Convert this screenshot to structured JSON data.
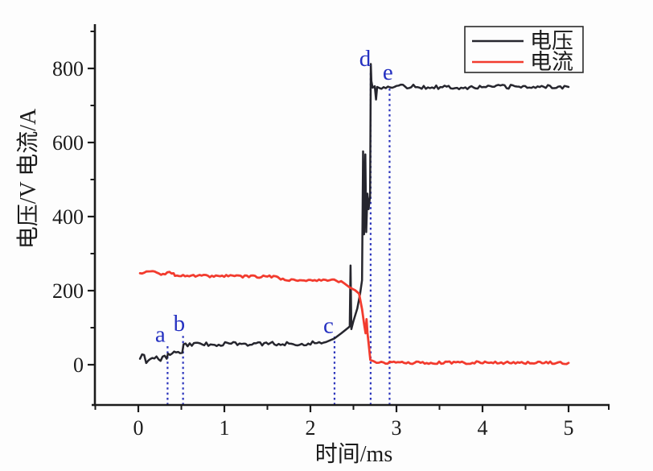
{
  "chart_data": {
    "type": "line",
    "title": "",
    "xlabel": "时间/ms",
    "ylabel": "电压/V 电流/A",
    "xlim": [
      -0.55,
      5.5
    ],
    "ylim": [
      -110,
      915
    ],
    "grid": false,
    "x_major_ticks": [
      0,
      1,
      2,
      3,
      4,
      5
    ],
    "x_tick_labels": [
      "0",
      "1",
      "2",
      "3",
      "4",
      "5"
    ],
    "x_minor_step": 0.5,
    "y_major_ticks": [
      0,
      200,
      400,
      600,
      800
    ],
    "y_tick_labels": [
      "0",
      "200",
      "400",
      "600",
      "800"
    ],
    "y_minor_ticks": [
      100,
      300,
      500,
      700,
      900
    ],
    "legend": {
      "position": "top-right",
      "entries": [
        {
          "label": "电压",
          "color": "#26262e"
        },
        {
          "label": "电流",
          "color": "#f23b2e"
        }
      ]
    },
    "annotation_color": "#2c35bd",
    "annotations": [
      {
        "label": "a",
        "t": 0.34,
        "line_top_v": 52,
        "label_t": 0.255,
        "label_v": 62
      },
      {
        "label": "b",
        "t": 0.52,
        "line_top_v": 80,
        "label_t": 0.475,
        "label_v": 91
      },
      {
        "label": "c",
        "t": 2.28,
        "line_top_v": 76,
        "label_t": 2.21,
        "label_v": 86
      },
      {
        "label": "d",
        "t": 2.7,
        "line_top_v": 790,
        "label_t": 2.635,
        "label_v": 806
      },
      {
        "label": "e",
        "t": 2.92,
        "line_top_v": 752,
        "label_t": 2.9,
        "label_v": 770
      }
    ],
    "series": [
      {
        "name": "电压",
        "unit": "V",
        "color": "#26262e",
        "width": 2.5,
        "noise": 5.5,
        "points": [
          [
            0.02,
            16,
            2.2
          ],
          [
            0.33,
            16
          ],
          [
            0.345,
            30,
            1.4
          ],
          [
            0.51,
            32
          ],
          [
            0.525,
            55,
            1
          ],
          [
            1.2,
            56
          ],
          [
            1.75,
            57
          ],
          [
            2.05,
            58
          ],
          [
            2.18,
            61
          ],
          [
            2.28,
            71
          ],
          [
            2.36,
            85
          ],
          [
            2.44,
            100
          ],
          [
            2.457,
            104
          ],
          [
            2.466,
            268
          ],
          [
            2.476,
            96
          ],
          [
            2.5,
            118
          ],
          [
            2.545,
            152
          ],
          [
            2.578,
            192
          ],
          [
            2.6,
            228
          ],
          [
            2.612,
            576
          ],
          [
            2.623,
            352
          ],
          [
            2.638,
            568
          ],
          [
            2.649,
            358
          ],
          [
            2.663,
            462
          ],
          [
            2.676,
            420
          ],
          [
            2.693,
            455
          ],
          [
            2.702,
            812
          ],
          [
            2.708,
            766
          ],
          [
            2.722,
            748
          ],
          [
            2.748,
            752
          ],
          [
            2.763,
            716
          ],
          [
            2.776,
            750
          ],
          [
            3.1,
            751
          ],
          [
            3.8,
            749
          ],
          [
            4.4,
            751
          ],
          [
            5.0,
            750
          ]
        ]
      },
      {
        "name": "电流",
        "unit": "A",
        "color": "#f23b2e",
        "width": 2.8,
        "noise": 3.5,
        "points": [
          [
            0.02,
            247,
            1.6
          ],
          [
            0.41,
            247
          ],
          [
            0.425,
            240
          ],
          [
            0.95,
            239
          ],
          [
            1.5,
            238
          ],
          [
            1.62,
            237
          ],
          [
            1.655,
            230
          ],
          [
            2.0,
            229
          ],
          [
            2.3,
            227
          ],
          [
            2.385,
            221
          ],
          [
            2.46,
            208
          ],
          [
            2.52,
            201
          ],
          [
            2.565,
            192
          ],
          [
            2.6,
            150
          ],
          [
            2.625,
            108
          ],
          [
            2.641,
            85
          ],
          [
            2.652,
            123
          ],
          [
            2.663,
            87
          ],
          [
            2.678,
            55
          ],
          [
            2.696,
            13
          ],
          [
            2.74,
            9
          ],
          [
            2.85,
            6
          ],
          [
            3.4,
            5
          ],
          [
            4.1,
            6
          ],
          [
            5.0,
            5
          ]
        ]
      }
    ]
  }
}
